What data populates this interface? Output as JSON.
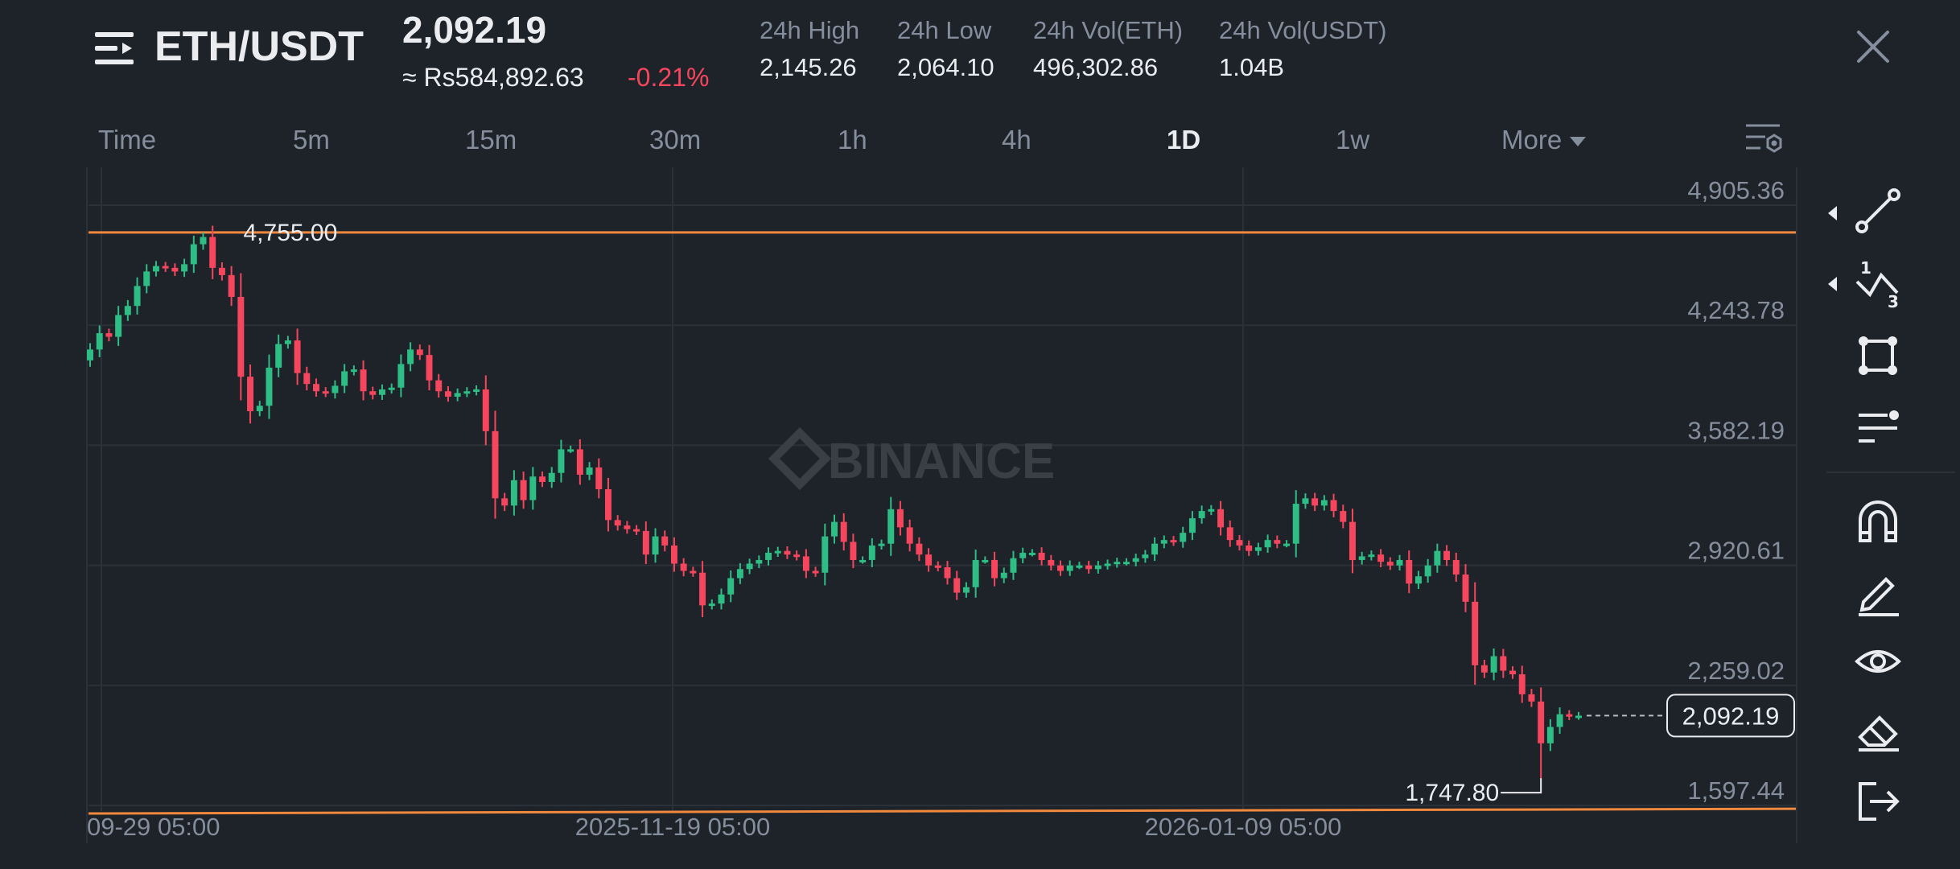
{
  "header": {
    "pair": "ETH/USDT",
    "last_price": "2,092.19",
    "fiat_price": "≈ Rs584,892.63",
    "change": "-0.21%",
    "stats": [
      {
        "label": "24h High",
        "value": "2,145.26"
      },
      {
        "label": "24h Low",
        "value": "2,064.10"
      },
      {
        "label": "24h Vol(ETH)",
        "value": "496,302.86"
      },
      {
        "label": "24h Vol(USDT)",
        "value": "1.04B"
      }
    ]
  },
  "intervals": [
    "Time",
    "5m",
    "15m",
    "30m",
    "1h",
    "4h",
    "1D",
    "1w",
    "More"
  ],
  "active_interval": "1D",
  "colors": {
    "up": "#2ebd85",
    "down": "#f6465d",
    "line": "#f0883e",
    "bg": "#1e2329",
    "grid": "#2b3139",
    "muted": "#848e9c"
  },
  "icons": {
    "menu": "menu-lines-icon",
    "close": "close-icon",
    "settings": "chart-settings-icon",
    "tools": [
      "trend-line-icon",
      "fibonacci-icon",
      "rectangle-icon",
      "indicator-lines-icon",
      "magnet-icon",
      "pencil-icon",
      "eye-icon",
      "eraser-icon",
      "exit-icon"
    ]
  },
  "chart_data": {
    "type": "candlestick",
    "watermark": "BINANCE",
    "y_ticks": [
      "4,905.36",
      "4,243.78",
      "3,582.19",
      "2,920.61",
      "2,259.02",
      "1,597.44"
    ],
    "ylim": [
      1597.44,
      4905.36
    ],
    "x_ticks": [
      "09-29 05:00",
      "2025-11-19 05:00",
      "2026-01-09 05:00"
    ],
    "current_price": 2092.19,
    "current_price_label": "2,092.19",
    "high_marker": {
      "value": 4755.0,
      "label": "4,755.00"
    },
    "low_marker": {
      "value": 1747.8,
      "label": "1,747.80"
    },
    "hlines": [
      {
        "value": 4755.0
      }
    ],
    "support_line": {
      "start": 1597.44,
      "end": 1610
    },
    "closes": [
      4110,
      4200,
      4180,
      4300,
      4350,
      4460,
      4540,
      4570,
      4560,
      4540,
      4580,
      4690,
      4730,
      4560,
      4520,
      4400,
      3960,
      3770,
      3800,
      4010,
      4140,
      4160,
      3980,
      3920,
      3880,
      3870,
      3910,
      3990,
      4000,
      3880,
      3860,
      3890,
      3900,
      4030,
      4110,
      4080,
      3940,
      3880,
      3850,
      3870,
      3880,
      3890,
      3660,
      3290,
      3250,
      3390,
      3280,
      3410,
      3380,
      3430,
      3560,
      3560,
      3420,
      3460,
      3340,
      3170,
      3140,
      3120,
      3110,
      2980,
      3080,
      3030,
      2930,
      2890,
      2880,
      2700,
      2710,
      2760,
      2850,
      2900,
      2930,
      2950,
      2990,
      3000,
      2980,
      2970,
      2890,
      2880,
      3080,
      3160,
      3050,
      2950,
      2950,
      3030,
      3040,
      3230,
      3130,
      3040,
      2980,
      2920,
      2910,
      2850,
      2770,
      2800,
      2950,
      2950,
      2850,
      2880,
      2960,
      2990,
      2990,
      2950,
      2920,
      2890,
      2920,
      2920,
      2900,
      2920,
      2930,
      2940,
      2940,
      2960,
      2980,
      3040,
      3060,
      3050,
      3100,
      3180,
      3220,
      3230,
      3130,
      3060,
      3030,
      3000,
      3020,
      3060,
      3040,
      3040,
      3260,
      3290,
      3250,
      3280,
      3220,
      3160,
      2950,
      2970,
      2980,
      2940,
      2920,
      2950,
      2820,
      2860,
      2920,
      3000,
      2950,
      2870,
      2720,
      2370,
      2330,
      2420,
      2340,
      2320,
      2210,
      2170,
      1940,
      2030,
      2100,
      2090,
      2092.19
    ]
  }
}
